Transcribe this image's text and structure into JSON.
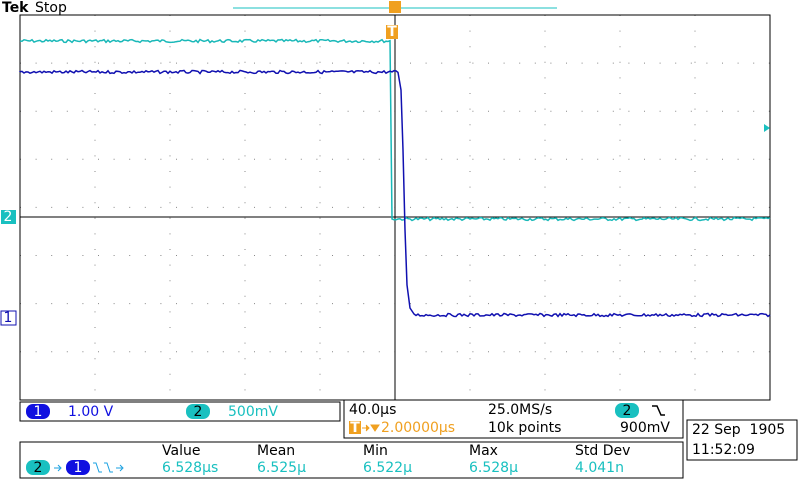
{
  "header": {
    "brand": "Tek",
    "status": "Stop"
  },
  "markers": {
    "trigger": "T",
    "ch2": "2",
    "ch1": "1"
  },
  "channels": [
    {
      "id": "1",
      "scale": "1.00 V"
    },
    {
      "id": "2",
      "scale": "500mV"
    }
  ],
  "timebase": {
    "scale": "40.0µs",
    "sample_rate": "25.0MS/s",
    "trigger_position": "2.00000µs",
    "record_length": "10k points",
    "trigger_source": "2",
    "trigger_level": "900mV"
  },
  "datetime": {
    "date": "22 Sep  1905",
    "time": "11:52:09"
  },
  "measurement": {
    "source": "2",
    "target": "1",
    "headers": [
      "Value",
      "Mean",
      "Min",
      "Max",
      "Std Dev"
    ],
    "values": [
      "6.528µs",
      "6.525µ",
      "6.522µ",
      "6.528µ",
      "4.041n"
    ]
  }
}
